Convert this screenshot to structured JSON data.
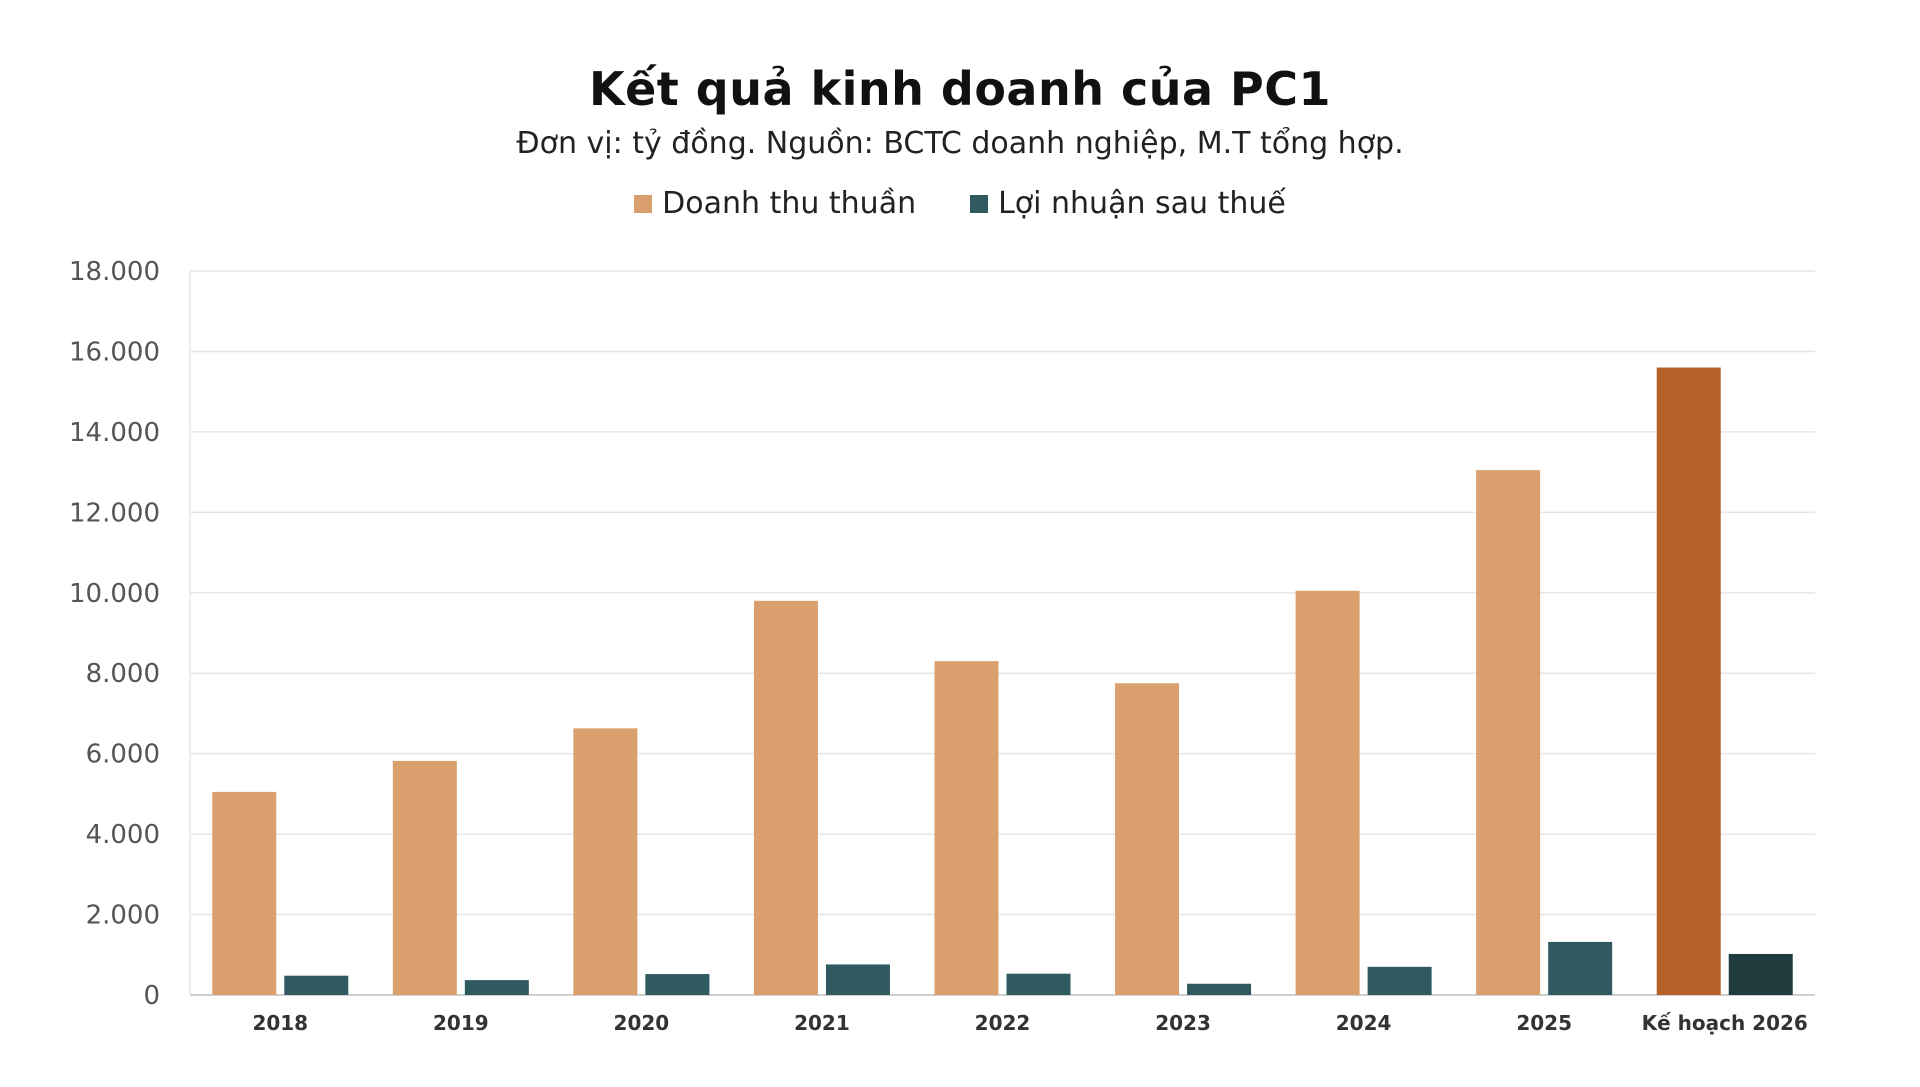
{
  "chart_data": {
    "type": "bar",
    "title": "Kết quả kinh doanh của PC1",
    "subtitle": "Đơn vị: tỷ đồng. Nguồn: BCTC doanh nghiệp, M.T tổng hợp.",
    "categories": [
      "2018",
      "2019",
      "2020",
      "2021",
      "2022",
      "2023",
      "2024",
      "2025",
      "Kế hoạch 2026"
    ],
    "series": [
      {
        "name": "Doanh thu thuần",
        "color": "#D9A06E",
        "highlight_color": "#B5622A",
        "values": [
          5050,
          5820,
          6630,
          9800,
          8300,
          7750,
          10050,
          13050,
          15600
        ]
      },
      {
        "name": "Lợi nhuận sau thuế",
        "color": "#2E5A60",
        "highlight_color": "#1F3B3E",
        "values": [
          480,
          370,
          520,
          760,
          530,
          280,
          700,
          1320,
          1020
        ]
      }
    ],
    "highlight_category": "Kế hoạch 2026",
    "ylim": [
      0,
      18000
    ],
    "yticks": [
      0,
      2000,
      4000,
      6000,
      8000,
      10000,
      12000,
      14000,
      16000,
      18000
    ],
    "ytick_labels": [
      "0",
      "2.000",
      "4.000",
      "6.000",
      "8.000",
      "10.000",
      "12.000",
      "14.000",
      "16.000",
      "18.000"
    ],
    "grid": true,
    "legend_position": "top-center"
  }
}
